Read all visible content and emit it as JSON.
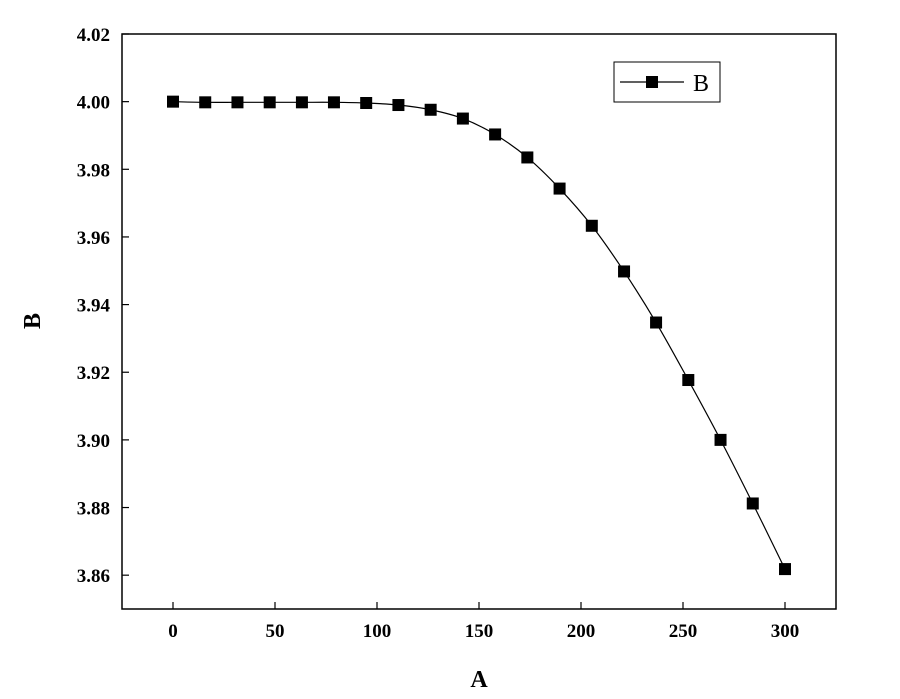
{
  "chart_data": {
    "type": "line",
    "xlabel": "A",
    "ylabel": "B",
    "xlim": [
      -25,
      325
    ],
    "ylim": [
      3.85,
      4.02
    ],
    "xticks": [
      "0",
      "50",
      "100",
      "150",
      "200",
      "250",
      "300"
    ],
    "yticks": [
      "3.86",
      "3.88",
      "3.90",
      "3.92",
      "3.94",
      "3.96",
      "3.98",
      "4.00",
      "4.02"
    ],
    "legend": {
      "position": "top-right",
      "entries": [
        "B"
      ]
    },
    "grid": false,
    "series": [
      {
        "name": "B",
        "marker": "square",
        "color": "#000000",
        "x": [
          0,
          15.8,
          31.6,
          47.4,
          63.2,
          78.9,
          94.7,
          110.5,
          126.3,
          142.1,
          157.9,
          173.7,
          189.5,
          205.3,
          221.1,
          236.8,
          252.6,
          268.4,
          284.2,
          300
        ],
        "y": [
          4.0,
          3.9998,
          3.9998,
          3.9998,
          3.9998,
          3.9998,
          3.9996,
          3.999,
          3.9976,
          3.995,
          3.9903,
          3.9835,
          3.9743,
          3.9633,
          3.9498,
          3.9347,
          3.9177,
          3.9,
          3.8812,
          3.8618
        ]
      }
    ]
  }
}
